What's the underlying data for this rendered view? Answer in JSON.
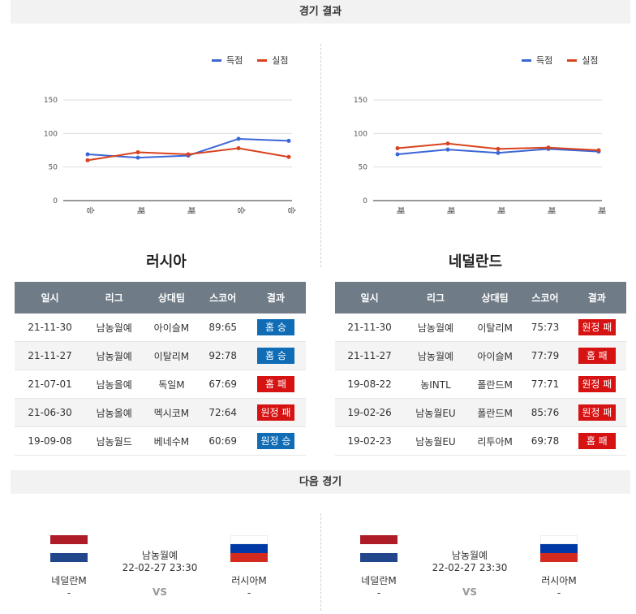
{
  "header": {
    "results_title": "경기 결과",
    "next_title": "다음 경기"
  },
  "colors": {
    "scored": "#3a66d6",
    "conceded": "#d9421e",
    "win": "#0f6cb5",
    "loss": "#d61212",
    "header_bg": "#6f7b86"
  },
  "legend": {
    "scored": "득점",
    "conceded": "실점"
  },
  "charts": [
    {
      "team": "러시아",
      "labels": [
        "승",
        "패",
        "패",
        "승",
        "승"
      ],
      "scored": [
        69,
        64,
        67,
        92,
        89
      ],
      "conceded": [
        60,
        72,
        69,
        78,
        65
      ]
    },
    {
      "team": "네덜란드",
      "labels": [
        "패",
        "패",
        "패",
        "패",
        "패"
      ],
      "scored": [
        69,
        76,
        71,
        77,
        73
      ],
      "conceded": [
        78,
        85,
        77,
        79,
        75
      ]
    }
  ],
  "chart_axis": {
    "yticks": [
      "0",
      "50",
      "100",
      "150"
    ],
    "ylim": [
      0,
      150
    ]
  },
  "table_headers": [
    "일시",
    "리그",
    "상대팀",
    "스코어",
    "결과"
  ],
  "tables": [
    {
      "rows": [
        {
          "date": "21-11-30",
          "league": "남농월예",
          "opp": "아이슬M",
          "score": "89:65",
          "result": "홈 승",
          "type": "win"
        },
        {
          "date": "21-11-27",
          "league": "남농월예",
          "opp": "이탈리M",
          "score": "92:78",
          "result": "홈 승",
          "type": "win"
        },
        {
          "date": "21-07-01",
          "league": "남농올예",
          "opp": "독일M",
          "score": "67:69",
          "result": "홈 패",
          "type": "loss"
        },
        {
          "date": "21-06-30",
          "league": "남농올예",
          "opp": "멕시코M",
          "score": "72:64",
          "result": "원정 패",
          "type": "loss"
        },
        {
          "date": "19-09-08",
          "league": "남농월드",
          "opp": "베네수M",
          "score": "60:69",
          "result": "원정 승",
          "type": "win"
        }
      ]
    },
    {
      "rows": [
        {
          "date": "21-11-30",
          "league": "남농월예",
          "opp": "이탈리M",
          "score": "75:73",
          "result": "원정 패",
          "type": "loss"
        },
        {
          "date": "21-11-27",
          "league": "남농월예",
          "opp": "아이슬M",
          "score": "77:79",
          "result": "홈 패",
          "type": "loss"
        },
        {
          "date": "19-08-22",
          "league": "농INTL",
          "opp": "폴란드M",
          "score": "77:71",
          "result": "원정 패",
          "type": "loss"
        },
        {
          "date": "19-02-26",
          "league": "남농월EU",
          "opp": "폴란드M",
          "score": "85:76",
          "result": "원정 패",
          "type": "loss"
        },
        {
          "date": "19-02-23",
          "league": "남농월EU",
          "opp": "리투아M",
          "score": "69:78",
          "result": "홈 패",
          "type": "loss"
        }
      ]
    }
  ],
  "next_matches": [
    {
      "home": "네덜란M",
      "away": "러시아M",
      "league": "남농월예",
      "datetime": "22-02-27 23:30",
      "vs": "VS",
      "home_sub": "-",
      "away_sub": "-"
    },
    {
      "home": "네덜란M",
      "away": "러시아M",
      "league": "남농월예",
      "datetime": "22-02-27 23:30",
      "vs": "VS",
      "home_sub": "-",
      "away_sub": "-"
    }
  ]
}
